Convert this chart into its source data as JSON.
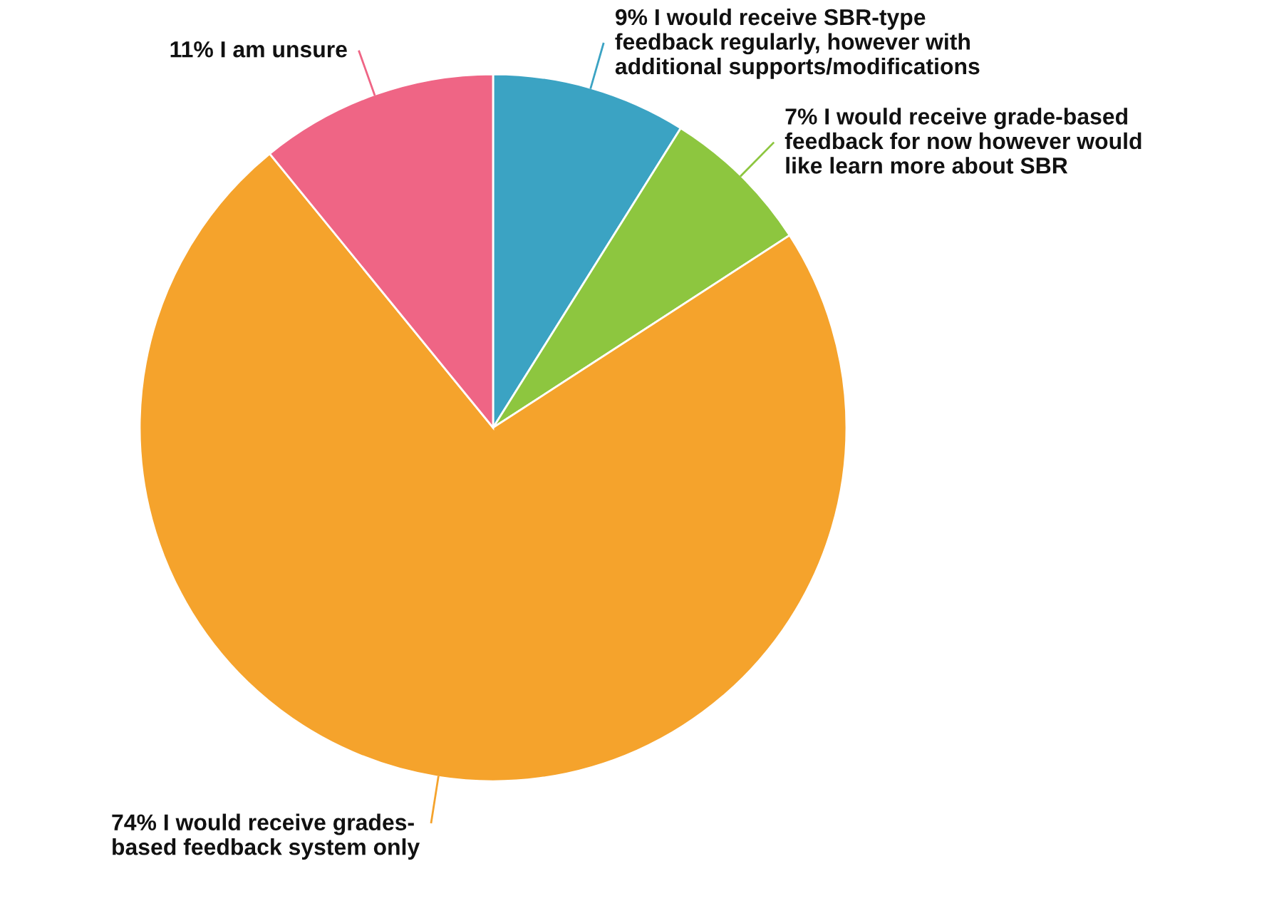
{
  "chart_data": {
    "type": "pie",
    "categories": [
      "I would receive SBR-type\nfeedback regularly, however with\nadditional supports/modifications",
      "I would receive grade-based\nfeedback for now however would\nlike learn more about SBR",
      "I would receive grades-\nbased feedback system only",
      "I am unsure"
    ],
    "values": [
      9,
      7,
      74,
      11
    ],
    "value_labels": [
      "9%",
      "7%",
      "74%",
      "11%"
    ],
    "colors": [
      "#3ba3c3",
      "#8dc63f",
      "#f5a32c",
      "#ef6585"
    ]
  }
}
